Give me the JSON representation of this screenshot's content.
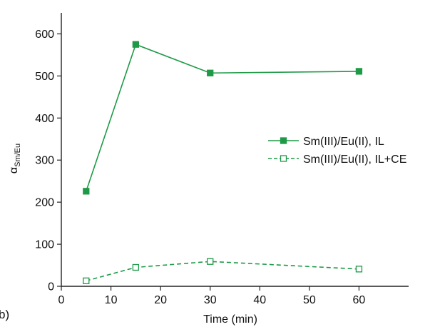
{
  "panel_label": "b)",
  "chart_data": {
    "type": "line",
    "title": "",
    "xlabel": "Time (min)",
    "ylabel": {
      "main": "α",
      "subscript": "Sm/Eu"
    },
    "xlim": [
      0,
      70
    ],
    "ylim": [
      0,
      650
    ],
    "xticks": [
      0,
      10,
      20,
      30,
      40,
      50,
      60
    ],
    "yticks": [
      0,
      100,
      200,
      300,
      400,
      500,
      600
    ],
    "grid": false,
    "legend_position": "center-right",
    "series": [
      {
        "name": "Sm(III)/Eu(II), IL",
        "x": [
          5,
          15,
          30,
          60
        ],
        "y": [
          226,
          575,
          507,
          511
        ],
        "color": "#1e9a47",
        "line_style": "solid",
        "marker": "filled-square"
      },
      {
        "name": "Sm(III)/Eu(II), IL+CE",
        "x": [
          5,
          15,
          30,
          60
        ],
        "y": [
          13,
          45,
          59,
          41
        ],
        "color": "#1e9a47",
        "line_style": "dashed",
        "marker": "open-square"
      }
    ]
  }
}
